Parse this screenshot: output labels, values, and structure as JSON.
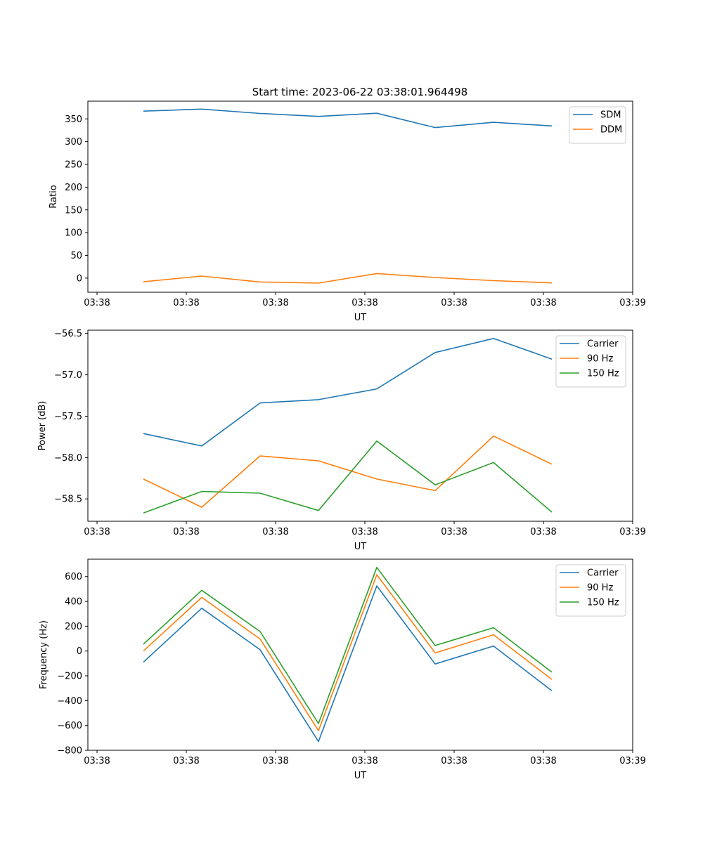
{
  "figure": {
    "title": "Start time: 2023-06-22 03:38:01.964498"
  },
  "chart_data": [
    {
      "type": "line",
      "xlabel": "UT",
      "ylabel": "Ratio",
      "x_tick_labels": [
        "03:38",
        "03:38",
        "03:38",
        "03:38",
        "03:38",
        "03:38",
        "03:38",
        "03:39"
      ],
      "ylim": [
        -31,
        389
      ],
      "yticks": [
        0,
        50,
        100,
        150,
        200,
        250,
        300,
        350
      ],
      "legend": "top-right",
      "series": [
        {
          "name": "SDM",
          "color": "#1f77b4",
          "values": [
            367,
            371.5,
            362,
            355.5,
            362.5,
            331,
            342.5,
            334.5
          ]
        },
        {
          "name": "DDM",
          "color": "#ff7f0e",
          "values": [
            -8,
            4.5,
            -8.5,
            -11,
            10,
            1.5,
            -5.5,
            -10.5
          ]
        }
      ]
    },
    {
      "type": "line",
      "xlabel": "UT",
      "ylabel": "Power (dB)",
      "x_tick_labels": [
        "03:38",
        "03:38",
        "03:38",
        "03:38",
        "03:38",
        "03:38",
        "03:38",
        "03:39"
      ],
      "ylim": [
        -58.77,
        -56.46
      ],
      "yticks": [
        -58.5,
        -58.0,
        -57.5,
        -57.0,
        -56.5
      ],
      "ytick_labels": [
        "−58.5",
        "−58.0",
        "−57.5",
        "−57.0",
        "−56.5"
      ],
      "legend": "top-right",
      "series": [
        {
          "name": "Carrier",
          "color": "#1f77b4",
          "values": [
            -57.71,
            -57.86,
            -57.34,
            -57.3,
            -57.17,
            -56.73,
            -56.56,
            -56.81
          ]
        },
        {
          "name": "90 Hz",
          "color": "#ff7f0e",
          "values": [
            -58.26,
            -58.6,
            -57.98,
            -58.04,
            -58.26,
            -58.4,
            -57.74,
            -58.08
          ]
        },
        {
          "name": "150 Hz",
          "color": "#2ca02c",
          "values": [
            -58.67,
            -58.41,
            -58.43,
            -58.64,
            -57.8,
            -58.33,
            -58.06,
            -58.66
          ]
        }
      ]
    },
    {
      "type": "line",
      "xlabel": "UT",
      "ylabel": "Frequency (Hz)",
      "x_tick_labels": [
        "03:38",
        "03:38",
        "03:38",
        "03:38",
        "03:38",
        "03:38",
        "03:38",
        "03:39"
      ],
      "ylim": [
        -800,
        740
      ],
      "yticks": [
        -800,
        -600,
        -400,
        -200,
        0,
        200,
        400,
        600
      ],
      "ytick_labels": [
        "−800",
        "−600",
        "−400",
        "−200",
        "0",
        "200",
        "400",
        "600"
      ],
      "legend": "top-right",
      "series": [
        {
          "name": "Carrier",
          "color": "#1f77b4",
          "values": [
            -90,
            345,
            10,
            -730,
            525,
            -105,
            40,
            -320
          ]
        },
        {
          "name": "90 Hz",
          "color": "#ff7f0e",
          "values": [
            0,
            432,
            97,
            -642,
            615,
            -15,
            131,
            -229
          ]
        },
        {
          "name": "150 Hz",
          "color": "#2ca02c",
          "values": [
            55,
            489,
            157,
            -585,
            674,
            44,
            188,
            -170
          ]
        }
      ]
    }
  ]
}
